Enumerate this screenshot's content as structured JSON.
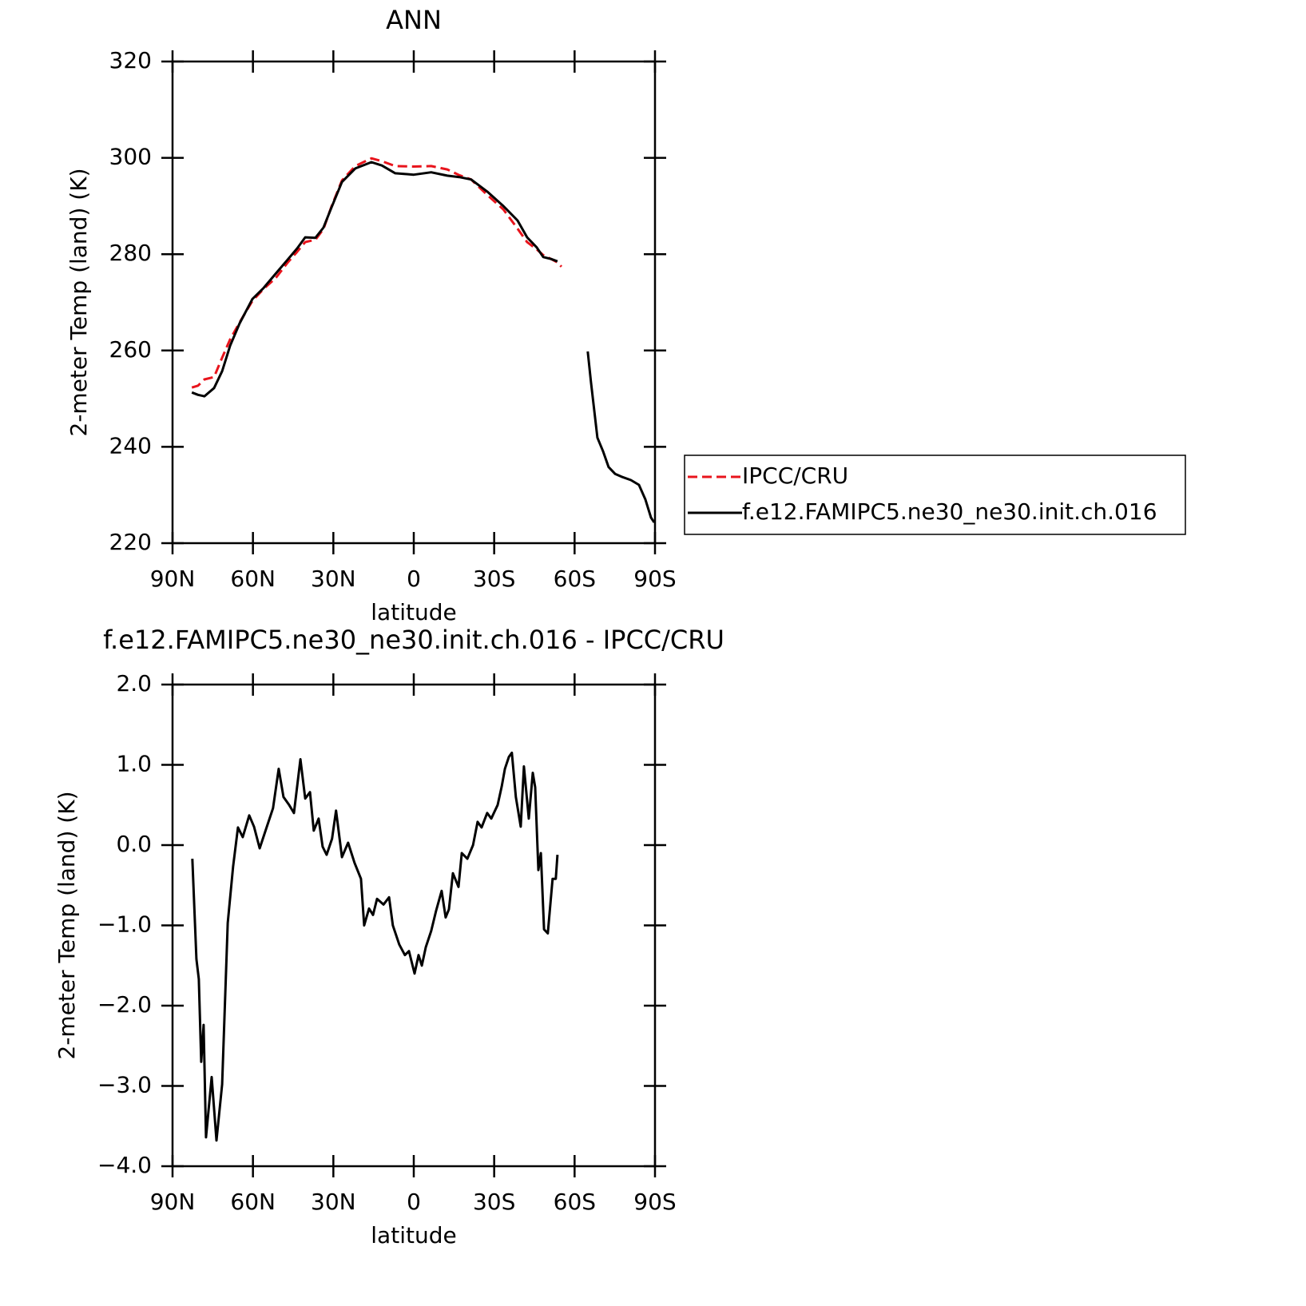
{
  "chart_data": [
    {
      "type": "line",
      "title": "ANN",
      "x_label": "latitude",
      "y_label": "2-meter Temp (land) (K)",
      "x": [
        82.8,
        80.5,
        78.1,
        74.5,
        71.5,
        68.5,
        65,
        60.2,
        56,
        51.6,
        47,
        43.5,
        40.5,
        36.7,
        33.7,
        30.7,
        26.8,
        21.8,
        15.8,
        11.9,
        6.9,
        0,
        -6.5,
        -12.5,
        -17,
        -21.4,
        -27.4,
        -33.4,
        -38.7,
        -42.3,
        -45.9,
        -48.3,
        -51.2,
        -53.6,
        -55.1,
        -64.9,
        -66.1,
        -68.5,
        -70.6,
        -72.7,
        -75.1,
        -77.5,
        -81,
        -84,
        -86.4,
        -88.5,
        -89.7
      ],
      "series": [
        {
          "name": "IPCC/CRU",
          "color": "#e8141c",
          "style": "dashed",
          "values": [
            252.3,
            252.7,
            254.0,
            254.5,
            258.5,
            262.3,
            265.8,
            270.3,
            272.8,
            275,
            278.3,
            280.5,
            282.5,
            283,
            285.2,
            289.9,
            295.3,
            298.3,
            299.9,
            299.3,
            298.3,
            298.2,
            298.3,
            297.6,
            296.4,
            295.5,
            292.3,
            289.3,
            285.3,
            282.5,
            281,
            279.8,
            279,
            278.3,
            277.4,
            null,
            null,
            null,
            null,
            null,
            null,
            null,
            null,
            null,
            null,
            null,
            null
          ]
        },
        {
          "name": "f.e12.FAMIPC5.ne30_ne30.init.ch.016",
          "color": "#000000",
          "style": "solid",
          "values": [
            251.3,
            250.8,
            250.5,
            252.2,
            255.7,
            261,
            265.6,
            270.7,
            273,
            275.9,
            278.9,
            281.2,
            283.5,
            283.4,
            285.5,
            289.7,
            295,
            297.8,
            299.1,
            298.4,
            296.8,
            296.5,
            297,
            296.3,
            296,
            295.5,
            293,
            290,
            287,
            283.5,
            281.4,
            279.4,
            279,
            278.5,
            null,
            259.8,
            253.5,
            241.9,
            239.1,
            235.8,
            234.4,
            233.8,
            233.1,
            232.1,
            229.1,
            225.3,
            224.3
          ]
        }
      ],
      "xlim": [
        90,
        -90
      ],
      "xticks": [
        {
          "value": 90,
          "label": "90N"
        },
        {
          "value": 60,
          "label": "60N"
        },
        {
          "value": 30,
          "label": "30N"
        },
        0,
        {
          "value": -30,
          "label": "30S"
        },
        {
          "value": -60,
          "label": "60S"
        },
        {
          "value": -90,
          "label": "90S"
        }
      ],
      "ylim": [
        220,
        320
      ],
      "yticks": [
        220,
        240,
        260,
        280,
        300,
        320
      ],
      "legend": "right"
    },
    {
      "type": "line",
      "title": "f.e12.FAMIPC5.ne30_ne30.init.ch.016 - IPCC/CRU",
      "x_label": "latitude",
      "y_label": "2-meter Temp (land) (K)",
      "x": [
        82.6,
        81.1,
        80.2,
        79.3,
        78.4,
        77.5,
        75.4,
        73.6,
        71.5,
        69.4,
        67.4,
        65.6,
        63.8,
        61.4,
        59.6,
        57.5,
        55.1,
        52.5,
        50.4,
        48.6,
        46.5,
        44.7,
        42.3,
        40.5,
        38.7,
        37.3,
        35.5,
        34,
        32.5,
        30.5,
        29,
        26.8,
        24.5,
        22.1,
        19.7,
        18.5,
        16.7,
        15.2,
        13.7,
        11.3,
        9.2,
        7.8,
        5.4,
        3.3,
        1.8,
        -0.3,
        -1.8,
        -3,
        -4.5,
        -6.5,
        -8.3,
        -10.4,
        -11.9,
        -13.1,
        -14.6,
        -16.7,
        -17.9,
        -20,
        -22.1,
        -23.8,
        -25.3,
        -27.4,
        -28.9,
        -31.3,
        -32.8,
        -34,
        -35.5,
        -36.6,
        -38.1,
        -39.9,
        -41.1,
        -42.9,
        -44.4,
        -45.3,
        -46.5,
        -47.4,
        -48.6,
        -50,
        -51.8,
        -53,
        -53.6
      ],
      "values": [
        -0.17,
        -1.42,
        -1.67,
        -2.7,
        -2.24,
        -3.64,
        -2.89,
        -3.68,
        -2.98,
        -0.97,
        -0.27,
        0.22,
        0.1,
        0.37,
        0.23,
        -0.04,
        0.2,
        0.46,
        0.95,
        0.6,
        0.5,
        0.4,
        1.07,
        0.58,
        0.66,
        0.18,
        0.33,
        -0.02,
        -0.12,
        0.08,
        0.43,
        -0.15,
        0.03,
        -0.22,
        -0.42,
        -1.0,
        -0.79,
        -0.87,
        -0.67,
        -0.74,
        -0.65,
        -1.0,
        -1.24,
        -1.37,
        -1.32,
        -1.6,
        -1.37,
        -1.5,
        -1.27,
        -1.07,
        -0.82,
        -0.57,
        -0.9,
        -0.8,
        -0.35,
        -0.52,
        -0.1,
        -0.17,
        0.0,
        0.29,
        0.22,
        0.4,
        0.33,
        0.5,
        0.73,
        0.95,
        1.1,
        1.15,
        0.6,
        0.23,
        0.98,
        0.33,
        0.9,
        0.72,
        -0.31,
        -0.1,
        -1.05,
        -1.1,
        -0.42,
        -0.42,
        -0.12
      ],
      "color": "#000000",
      "xlim": [
        90,
        -90
      ],
      "xticks": [
        {
          "value": 90,
          "label": "90N"
        },
        {
          "value": 60,
          "label": "60N"
        },
        {
          "value": 30,
          "label": "30N"
        },
        0,
        {
          "value": -30,
          "label": "30S"
        },
        {
          "value": -60,
          "label": "60S"
        },
        {
          "value": -90,
          "label": "90S"
        }
      ],
      "ylim": [
        -4,
        2
      ],
      "yticks": [
        {
          "value": -4,
          "label": "−4.0"
        },
        {
          "value": -3,
          "label": "−3.0"
        },
        {
          "value": -2,
          "label": "−2.0"
        },
        {
          "value": -1,
          "label": "−1.0"
        },
        {
          "value": 0,
          "label": "0.0"
        },
        {
          "value": 1,
          "label": "1.0"
        },
        {
          "value": 2,
          "label": "2.0"
        }
      ]
    }
  ]
}
